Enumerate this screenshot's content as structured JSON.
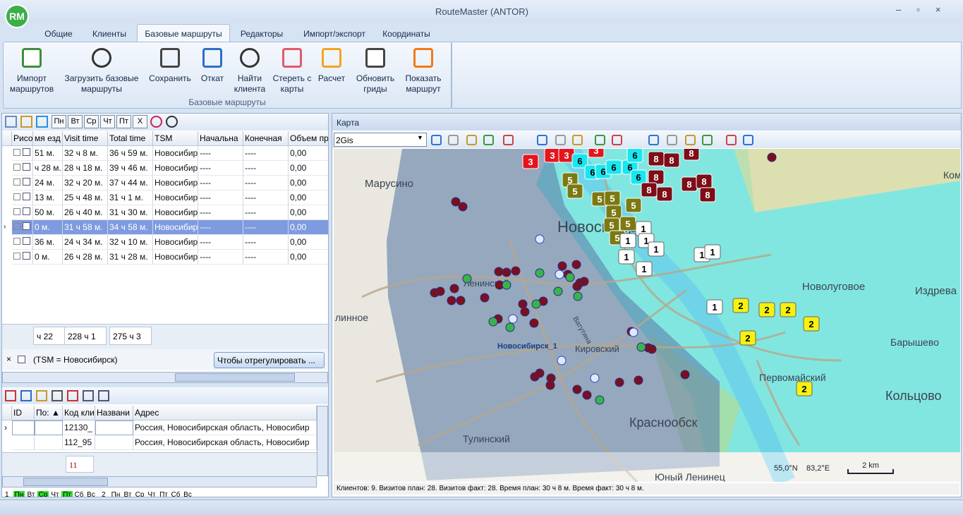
{
  "window": {
    "title": "RouteMaster (ANTOR)",
    "logo": "RM"
  },
  "tabs": [
    "Общие",
    "Клиенты",
    "Базовые маршруты",
    "Редакторы",
    "Импорт/экспорт",
    "Координаты"
  ],
  "active_tab": "Базовые маршруты",
  "ribbon": {
    "buttons": [
      "Импорт маршрутов",
      "Загрузить базовые маршруты",
      "Сохранить",
      "Откат",
      "Найти клиента",
      "Стереть с карты",
      "Расчет",
      "Обновить гриды",
      "Показать маршрут"
    ],
    "group": "Базовые маршруты"
  },
  "routes_grid": {
    "toolbar": [
      "Пн",
      "Вт",
      "Ср",
      "Чт",
      "Пт",
      "X"
    ],
    "columns": [
      "Рисо",
      "мя езд",
      "Visit time",
      "Total time",
      "TSM",
      "Начальна",
      "Конечная",
      "Объем пр"
    ],
    "rows": [
      [
        "51 м.",
        "32 ч 8 м.",
        "36 ч 59 м.",
        "Новосибир",
        "----",
        "----",
        "0,00"
      ],
      [
        "ч 28 м.",
        "28 ч 18 м.",
        "39 ч 46 м.",
        "Новосибир",
        "----",
        "----",
        "0,00"
      ],
      [
        "24 м.",
        "32 ч 20 м.",
        "37 ч 44 м.",
        "Новосибир",
        "----",
        "----",
        "0,00"
      ],
      [
        "13 м.",
        "25 ч 48 м.",
        "31 ч 1 м.",
        "Новосибир",
        "----",
        "----",
        "0,00"
      ],
      [
        "50 м.",
        "26 ч 40 м.",
        "31 ч 30 м.",
        "Новосибир",
        "----",
        "----",
        "0,00"
      ],
      [
        "0 м.",
        "31 ч 58 м.",
        "34 ч 58 м.",
        "Новосибир",
        "----",
        "----",
        "0,00"
      ],
      [
        "36 м.",
        "24 ч 34 м.",
        "32 ч 10 м.",
        "Новосибир",
        "----",
        "----",
        "0,00"
      ],
      [
        "0 м.",
        "26 ч 28 м.",
        "31 ч 28 м.",
        "Новосибир",
        "----",
        "----",
        "0,00"
      ]
    ],
    "selected_row": 5,
    "totals": [
      "ч 22",
      "228 ч 1",
      "275 ч 3"
    ],
    "filter": "(TSM = Новосибирск)",
    "filter_button": "Чтобы отрегулировать ..."
  },
  "clients_grid": {
    "columns": [
      "ID",
      "По: ▲",
      "Код кли",
      "Названи",
      "Адрес"
    ],
    "rows": [
      {
        "code": "12130_",
        "address": "Россия, Новосибирская область, Новосибир"
      },
      {
        "code": "112_95",
        "address": "Россия, Новосибирская область, Новосибир"
      }
    ],
    "count": "11"
  },
  "days": {
    "groups": [
      "1",
      "2"
    ],
    "names": [
      "Пн",
      "Вт",
      "Ср",
      "Чт",
      "Пт",
      "Сб",
      "Вс"
    ]
  },
  "map": {
    "title": "Карта",
    "layer": "2Gis",
    "places": [
      "Марусино",
      "Новосибирск",
      "Новолуговое",
      "Издрева",
      "Ленинский",
      "линное",
      "Барышево",
      "Новосибирск_1",
      "Кировский",
      "Первомайский",
      "Кольцово",
      "Краснообск",
      "Тулинский",
      "Юный Ленинец",
      "Ком",
      "Ватутина"
    ],
    "marker_groups": [
      {
        "label": "3",
        "color": "#e5151d"
      },
      {
        "label": "6",
        "color": "#19e6f0"
      },
      {
        "label": "8",
        "color": "#7d0d16"
      },
      {
        "label": "5",
        "color": "#7b7a12"
      },
      {
        "label": "1",
        "color": "#ffffff"
      },
      {
        "label": "2",
        "color": "#f6f10f"
      }
    ],
    "lat": "55,0°N",
    "lon": "83,2°E",
    "scale": "2 km",
    "status": "Клиентов: 9. Визитов план:  28. Визитов факт:  28. Время план: 30 ч  8 м. Время факт: 30 ч  8 м."
  }
}
